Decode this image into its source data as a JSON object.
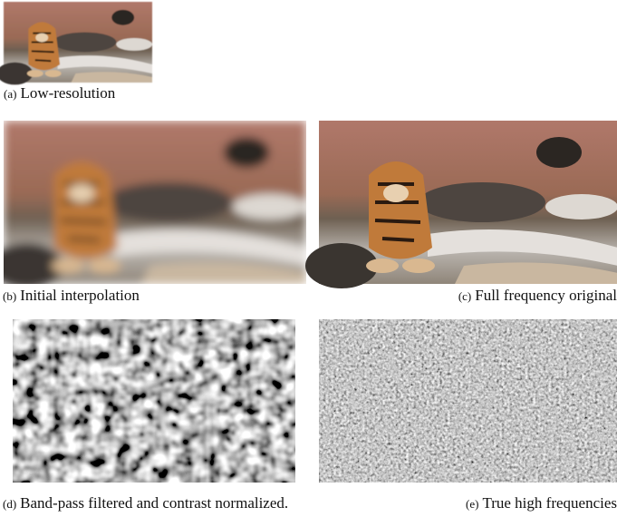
{
  "panels": [
    {
      "label": "(a)",
      "caption": "Low-resolution"
    },
    {
      "label": "(b)",
      "caption": "Initial interpolation"
    },
    {
      "label": "(c)",
      "caption": "Full frequency original"
    },
    {
      "label": "(d)",
      "caption": "Band-pass filtered and contrast normalized."
    },
    {
      "label": "(e)",
      "caption": "True high frequencies"
    }
  ]
}
